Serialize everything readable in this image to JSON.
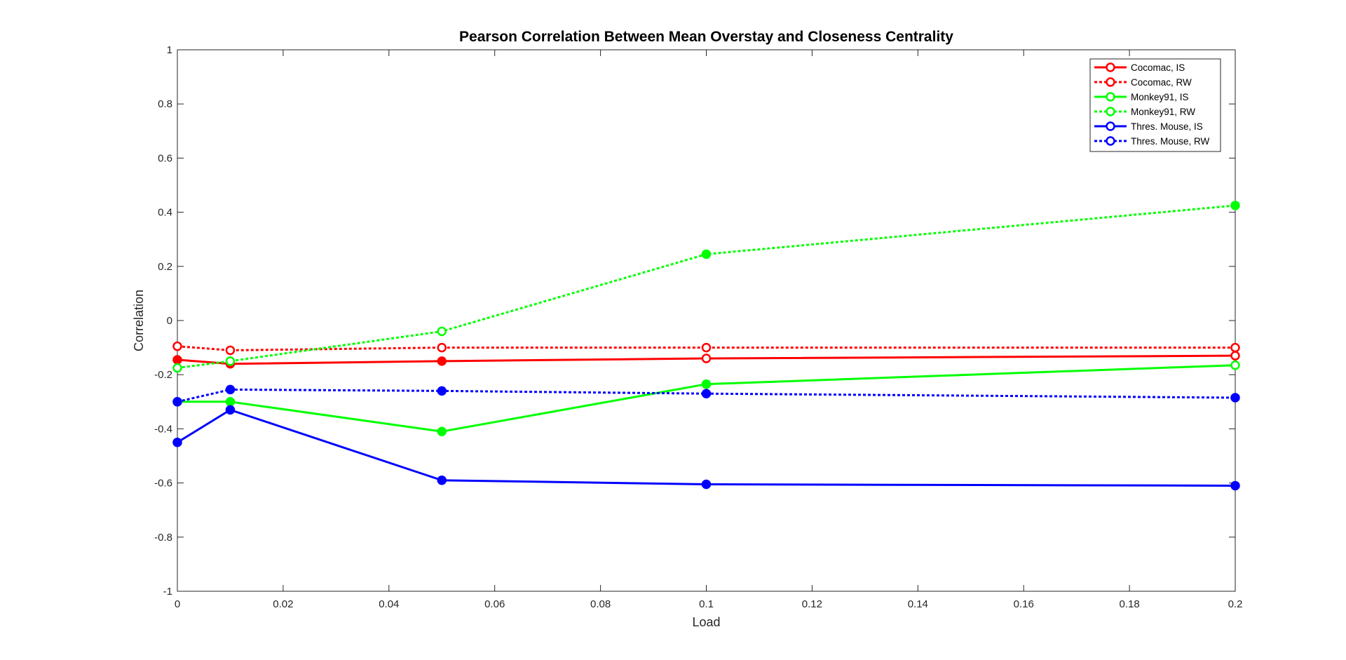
{
  "chart_data": {
    "type": "line",
    "title": "Pearson Correlation Between Mean Overstay and Closeness Centrality",
    "xlabel": "Load",
    "ylabel": "Correlation",
    "xlim": [
      0,
      0.2
    ],
    "ylim": [
      -1,
      1
    ],
    "xticks": [
      0,
      0.02,
      0.04,
      0.06,
      0.08,
      0.1,
      0.12,
      0.14,
      0.16,
      0.18,
      0.2
    ],
    "xtick_labels": [
      "0",
      "0.02",
      "0.04",
      "0.06",
      "0.08",
      "0.1",
      "0.12",
      "0.14",
      "0.16",
      "0.18",
      "0.2"
    ],
    "yticks": [
      -1,
      -0.8,
      -0.6,
      -0.4,
      -0.2,
      0,
      0.2,
      0.4,
      0.6,
      0.8,
      1
    ],
    "ytick_labels": [
      "-1",
      "-0.8",
      "-0.6",
      "-0.4",
      "-0.2",
      "0",
      "0.2",
      "0.4",
      "0.6",
      "0.8",
      "1"
    ],
    "grid": false,
    "legend_position": "top-right",
    "x": [
      0,
      0.01,
      0.05,
      0.1,
      0.2
    ],
    "series": [
      {
        "name": "Cocomac, IS",
        "color": "#ff0000",
        "line_style": "solid",
        "values": [
          -0.145,
          -0.16,
          -0.15,
          -0.14,
          -0.13
        ],
        "filled": [
          true,
          true,
          true,
          false,
          false
        ]
      },
      {
        "name": "Cocomac, RW",
        "color": "#ff0000",
        "line_style": "dotted",
        "values": [
          -0.095,
          -0.11,
          -0.1,
          -0.1,
          -0.1
        ],
        "filled": [
          false,
          false,
          false,
          false,
          false
        ]
      },
      {
        "name": "Monkey91, IS",
        "color": "#00ff00",
        "line_style": "solid",
        "values": [
          -0.3,
          -0.3,
          -0.41,
          -0.235,
          -0.165
        ],
        "filled": [
          true,
          true,
          true,
          true,
          false
        ]
      },
      {
        "name": "Monkey91, RW",
        "color": "#00ff00",
        "line_style": "dotted",
        "values": [
          -0.175,
          -0.15,
          -0.04,
          0.245,
          0.425
        ],
        "filled": [
          false,
          false,
          false,
          true,
          true
        ]
      },
      {
        "name": "Thres. Mouse, IS",
        "color": "#0000ff",
        "line_style": "solid",
        "values": [
          -0.45,
          -0.33,
          -0.59,
          -0.605,
          -0.61
        ],
        "filled": [
          true,
          true,
          true,
          true,
          true
        ]
      },
      {
        "name": "Thres. Mouse, RW",
        "color": "#0000ff",
        "line_style": "dotted",
        "values": [
          -0.3,
          -0.255,
          -0.26,
          -0.27,
          -0.285
        ],
        "filled": [
          true,
          true,
          true,
          true,
          true
        ]
      }
    ]
  }
}
